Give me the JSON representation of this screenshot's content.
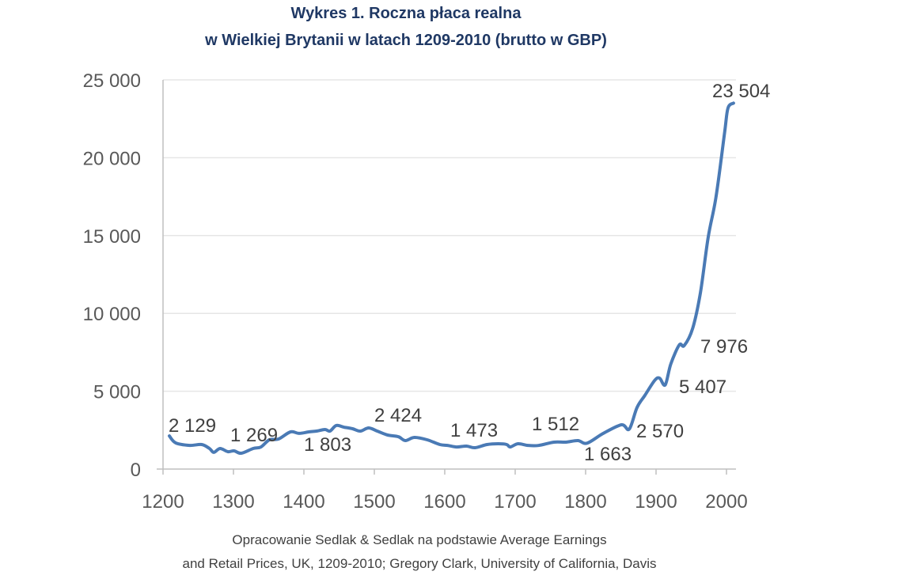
{
  "chart_data": {
    "type": "line",
    "title": "Wykres 1. Roczna płaca realna",
    "subtitle": "w Wielkiej Brytanii w latach 1209-2010 (brutto w GBP)",
    "xlabel": "",
    "ylabel": "",
    "xlim": [
      1200,
      2010
    ],
    "ylim": [
      0,
      25000
    ],
    "grid": "horizontal",
    "line_color": "#4a7ab5",
    "x_ticks": [
      "1200",
      "1300",
      "1400",
      "1500",
      "1600",
      "1700",
      "1800",
      "1900",
      "2000"
    ],
    "y_ticks": [
      "0",
      "5 000",
      "10 000",
      "15 000",
      "20 000",
      "25 000"
    ],
    "x": [
      1209,
      1218,
      1238,
      1255,
      1266,
      1272,
      1281,
      1292,
      1301,
      1311,
      1328,
      1339,
      1351,
      1364,
      1381,
      1393,
      1407,
      1418,
      1430,
      1437,
      1446,
      1457,
      1469,
      1480,
      1492,
      1505,
      1519,
      1534,
      1544,
      1557,
      1575,
      1593,
      1604,
      1617,
      1631,
      1643,
      1660,
      1676,
      1688,
      1693,
      1704,
      1718,
      1733,
      1755,
      1772,
      1789,
      1802,
      1825,
      1851,
      1862,
      1873,
      1884,
      1898,
      1905,
      1913,
      1921,
      1933,
      1940,
      1952,
      1963,
      1974,
      1985,
      1997,
      2002,
      2010
    ],
    "y": [
      2129,
      1680,
      1520,
      1575,
      1320,
      1070,
      1320,
      1120,
      1170,
      1016,
      1320,
      1420,
      1880,
      1930,
      2390,
      2290,
      2390,
      2440,
      2540,
      2440,
      2800,
      2690,
      2590,
      2440,
      2640,
      2424,
      2185,
      2080,
      1830,
      2030,
      1880,
      1575,
      1520,
      1420,
      1473,
      1370,
      1575,
      1625,
      1575,
      1420,
      1625,
      1520,
      1512,
      1730,
      1730,
      1830,
      1663,
      2290,
      2845,
      2570,
      3960,
      4725,
      5690,
      5840,
      5407,
      6760,
      7976,
      7930,
      9040,
      11330,
      14890,
      17430,
      21490,
      23170,
      23504
    ],
    "annotations": [
      {
        "text": "2 129",
        "year": 1209
      },
      {
        "text": "1 269",
        "year": 1300
      },
      {
        "text": "1 803",
        "year": 1400
      },
      {
        "text": "2 424",
        "year": 1505
      },
      {
        "text": "1 473",
        "year": 1631
      },
      {
        "text": "1 512",
        "year": 1733
      },
      {
        "text": "1 663",
        "year": 1802
      },
      {
        "text": "2 570",
        "year": 1862
      },
      {
        "text": "5 407",
        "year": 1913
      },
      {
        "text": "7 976",
        "year": 1933
      },
      {
        "text": "23 504",
        "year": 2010
      }
    ]
  },
  "source": {
    "line1": "Opracowanie Sedlak & Sedlak na podstawie Average Earnings",
    "line2": "and Retail Prices, UK, 1209-2010; Gregory Clark, University of California, Davis"
  }
}
